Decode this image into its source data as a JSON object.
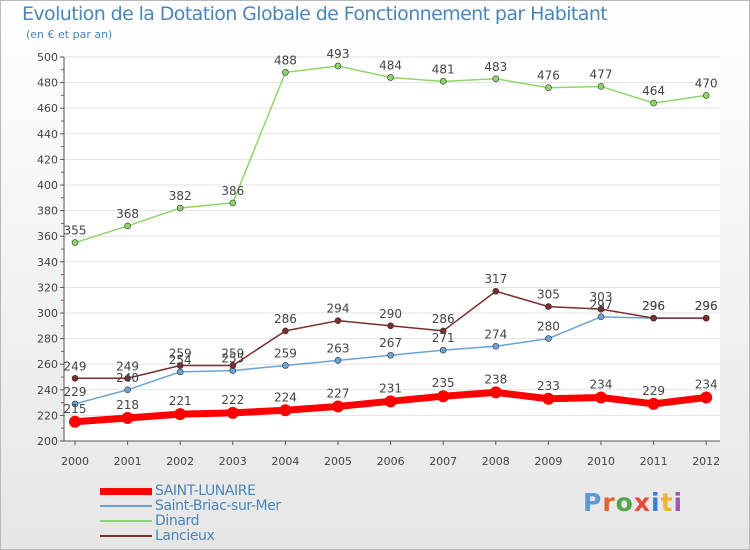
{
  "chart_data": {
    "type": "line",
    "title": "Evolution de la Dotation Globale de Fonctionnement par Habitant",
    "subtitle": "(en € et par an)",
    "xlabel": "",
    "ylabel": "",
    "x": [
      "2000",
      "2001",
      "2002",
      "2003",
      "2004",
      "2005",
      "2006",
      "2007",
      "2008",
      "2009",
      "2010",
      "2011",
      "2012"
    ],
    "ylim": [
      200,
      500
    ],
    "yticks": [
      "200",
      "220",
      "240",
      "260",
      "280",
      "300",
      "320",
      "340",
      "360",
      "380",
      "400",
      "420",
      "440",
      "460",
      "480",
      "500"
    ],
    "grid": "horizontal",
    "legend_position": "bottom-left",
    "series": [
      {
        "name": "SAINT-LUNAIRE",
        "color": "#ff0000",
        "values": [
          215,
          218,
          221,
          222,
          224,
          227,
          231,
          235,
          238,
          233,
          234,
          229,
          234
        ],
        "labels": [
          "215",
          "218",
          "221",
          "222",
          "224",
          "227",
          "231",
          "235",
          "238",
          "233",
          "234",
          "229",
          "234"
        ]
      },
      {
        "name": "Saint-Briac-sur-Mer",
        "color": "#6aa3d4",
        "values": [
          229,
          240,
          254,
          255,
          259,
          263,
          267,
          271,
          274,
          280,
          297,
          296,
          296
        ],
        "labels": [
          "229",
          "240",
          "254",
          "255",
          "259",
          "263",
          "267",
          "271",
          "274",
          "280",
          "297",
          "296",
          "296"
        ]
      },
      {
        "name": "Dinard",
        "color": "#8ed66a",
        "values": [
          355,
          368,
          382,
          386,
          488,
          493,
          484,
          481,
          483,
          476,
          477,
          464,
          470
        ],
        "labels": [
          "355",
          "368",
          "382",
          "386",
          "488",
          "493",
          "484",
          "481",
          "483",
          "476",
          "477",
          "464",
          "470"
        ]
      },
      {
        "name": "Lancieux",
        "color": "#7a2e2e",
        "values": [
          249,
          249,
          259,
          259,
          286,
          294,
          290,
          286,
          317,
          305,
          303,
          296,
          296
        ],
        "labels": [
          "249",
          "249",
          "259",
          "259",
          "286",
          "294",
          "290",
          "286",
          "317",
          "305",
          "303",
          "296",
          "296"
        ]
      }
    ]
  },
  "logo": {
    "text": "Proxiti",
    "colors": [
      "#5b9bd5",
      "#e0662e",
      "#4fa64a",
      "#e84a3c",
      "#3c7fd0",
      "#f0b42a",
      "#9b59b6"
    ]
  }
}
